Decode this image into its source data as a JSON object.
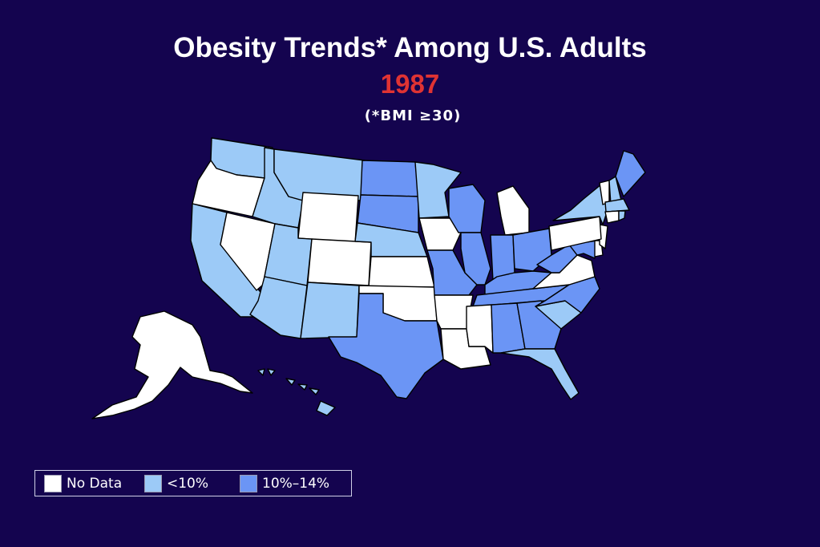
{
  "title": "Obesity Trends* Among U.S. Adults",
  "year": "1987",
  "subtitle": "(*BMI ≥30)",
  "colors": {
    "background": "#14044f",
    "no_data": "#ffffff",
    "lt10": "#9ccaf7",
    "p10_14": "#6b95f5",
    "border": "#000000"
  },
  "legend": [
    {
      "label": "No Data",
      "category": "no_data"
    },
    {
      "label": "<10%",
      "category": "lt10"
    },
    {
      "label": "10%–14%",
      "category": "p10_14"
    }
  ],
  "states": {
    "WA": "lt10",
    "OR": "no_data",
    "CA": "lt10",
    "NV": "no_data",
    "ID": "lt10",
    "MT": "lt10",
    "WY": "no_data",
    "UT": "lt10",
    "AZ": "lt10",
    "CO": "no_data",
    "NM": "lt10",
    "ND": "p10_14",
    "SD": "p10_14",
    "NE": "lt10",
    "KS": "no_data",
    "OK": "no_data",
    "TX": "p10_14",
    "MN": "lt10",
    "IA": "no_data",
    "MO": "p10_14",
    "AR": "no_data",
    "LA": "no_data",
    "WI": "p10_14",
    "IL": "p10_14",
    "MI": "no_data",
    "IN": "p10_14",
    "OH": "p10_14",
    "KY": "p10_14",
    "TN": "p10_14",
    "MS": "no_data",
    "AL": "p10_14",
    "GA": "p10_14",
    "FL": "lt10",
    "SC": "lt10",
    "NC": "p10_14",
    "VA": "no_data",
    "WV": "p10_14",
    "MD": "p10_14",
    "DE": "no_data",
    "NJ": "no_data",
    "PA": "no_data",
    "NY": "lt10",
    "VT": "no_data",
    "NH": "lt10",
    "ME": "p10_14",
    "MA": "lt10",
    "CT": "no_data",
    "RI": "lt10",
    "AK": "no_data",
    "HI": "lt10"
  }
}
